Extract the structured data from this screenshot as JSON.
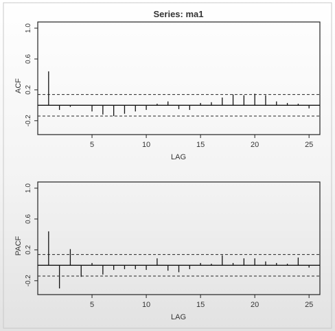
{
  "chart_data": [
    {
      "type": "bar",
      "title": "Series: ma1",
      "xlabel": "LAG",
      "ylabel": "ACF",
      "xlim": [
        0,
        26
      ],
      "ylim": [
        -0.38,
        1.08
      ],
      "x_ticks": [
        "5",
        "10",
        "15",
        "20",
        "25"
      ],
      "y_ticks": [
        "-0.2",
        "0.2",
        "0.6",
        "1.0"
      ],
      "confidence_bound": 0.14,
      "lags": [
        1,
        2,
        3,
        4,
        5,
        6,
        7,
        8,
        9,
        10,
        11,
        12,
        13,
        14,
        15,
        16,
        17,
        18,
        19,
        20,
        21,
        22,
        23,
        24,
        25
      ],
      "values": [
        0.44,
        -0.06,
        -0.02,
        0.0,
        -0.08,
        -0.12,
        -0.14,
        -0.11,
        -0.08,
        -0.06,
        0.02,
        0.05,
        -0.05,
        -0.06,
        0.03,
        0.04,
        0.1,
        0.14,
        0.13,
        0.15,
        0.13,
        0.05,
        0.03,
        0.02,
        -0.04
      ]
    },
    {
      "type": "bar",
      "title": "",
      "xlabel": "LAG",
      "ylabel": "PACF",
      "xlim": [
        0,
        26
      ],
      "ylim": [
        -0.38,
        1.08
      ],
      "x_ticks": [
        "5",
        "10",
        "15",
        "20",
        "25"
      ],
      "y_ticks": [
        "-0.2",
        "0.2",
        "0.6",
        "1.0"
      ],
      "confidence_bound": 0.14,
      "lags": [
        1,
        2,
        3,
        4,
        5,
        6,
        7,
        8,
        9,
        10,
        11,
        12,
        13,
        14,
        15,
        16,
        17,
        18,
        19,
        20,
        21,
        22,
        23,
        24,
        25
      ],
      "values": [
        0.44,
        -0.3,
        0.21,
        -0.15,
        0.03,
        -0.12,
        -0.06,
        -0.05,
        -0.05,
        -0.06,
        0.09,
        -0.07,
        -0.09,
        -0.05,
        0.03,
        0.02,
        0.13,
        0.03,
        0.09,
        0.09,
        0.05,
        0.03,
        0.02,
        0.1,
        -0.03
      ]
    }
  ]
}
